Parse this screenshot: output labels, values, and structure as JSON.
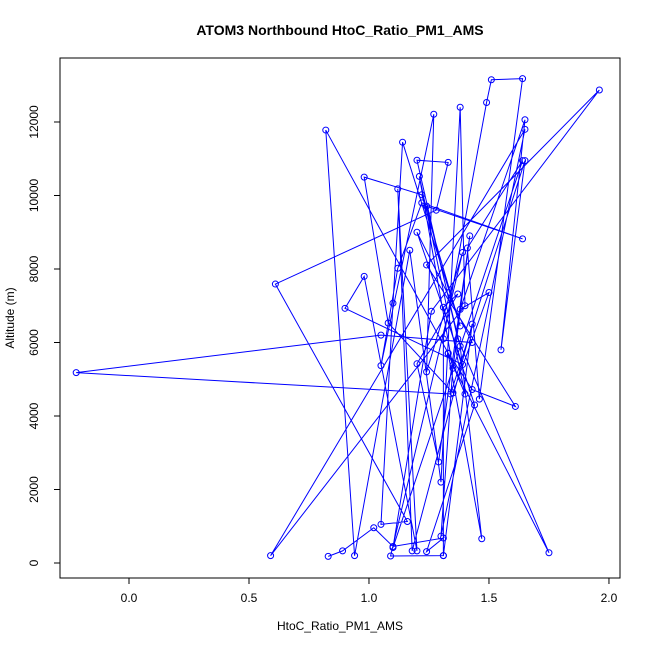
{
  "chart_data": {
    "type": "line",
    "title": "ATOM3 Northbound HtoC_Ratio_PM1_AMS",
    "x_label": "HtoC_Ratio_PM1_AMS",
    "y_label": "Altitude (m)",
    "color": "#0000ff",
    "markers": true,
    "x": [
      0.83,
      0.89,
      1.02,
      1.1,
      1.31,
      1.24,
      1.44,
      1.31,
      1.37,
      1.2,
      1.29,
      1.42,
      1.35,
      1.21,
      1.4,
      1.33,
      1.47,
      1.38,
      1.24,
      1.64,
      1.22,
      1.12,
      1.05,
      1.27,
      1.24,
      1.39,
      1.09,
      1.31,
      1.31,
      1.49,
      1.51,
      1.64,
      1.46,
      1.41,
      1.64,
      1.1,
      1.26,
      1.96,
      1.24,
      1.61,
      1.43,
      1.33,
      0.82,
      0.94,
      1.17,
      1.3,
      1.38,
      1.4,
      0.59,
      1.65,
      1.3,
      1.35,
      1.75,
      1.37,
      1.2,
      1.33,
      1.28,
      0.61,
      1.16,
      1.05,
      1.1,
      1.14,
      1.38,
      1.22,
      0.98,
      1.08,
      1.35,
      1.5,
      1.38,
      1.65,
      1.55,
      1.65,
      1.34,
      -0.22,
      1.05,
      1.43,
      1.2,
      1.39,
      0.9,
      0.98,
      1.2,
      1.12,
      1.18,
      1.43,
      1.31
    ],
    "values": [
      180,
      330,
      960,
      450,
      680,
      310,
      4300,
      6960,
      7320,
      5420,
      2750,
      8900,
      5300,
      10520,
      4600,
      5700,
      660,
      5900,
      9710,
      8820,
      9800,
      8020,
      5370,
      12210,
      5200,
      8450,
      190,
      200,
      6100,
      12530,
      13150,
      13180,
      4460,
      8570,
      10950,
      420,
      6850,
      12870,
      8110,
      4260,
      4720,
      5710,
      11780,
      200,
      8510,
      2200,
      12400,
      7000,
      200,
      11800,
      730,
      5380,
      280,
      6100,
      10960,
      10900,
      9600,
      7590,
      1130,
      1050,
      7070,
      11450,
      6450,
      10020,
      10500,
      6530,
      4630,
      7360,
      6900,
      12060,
      5800,
      10950,
      4600,
      5180,
      6200,
      6000,
      9000,
      5400,
      6930,
      7800,
      330,
      10180,
      330,
      6500,
      200
    ],
    "xlim": [
      -0.2875,
      2.046
    ],
    "ylim": [
      -408,
      13741
    ],
    "xticks": [
      {
        "value": 0,
        "label": "0.0"
      },
      0.5,
      {
        "value": 1,
        "label": "1.0"
      },
      1.5,
      {
        "value": 2,
        "label": "2.0"
      }
    ],
    "yticks": [
      0,
      2000,
      4000,
      6000,
      8000,
      10000,
      12000
    ]
  }
}
